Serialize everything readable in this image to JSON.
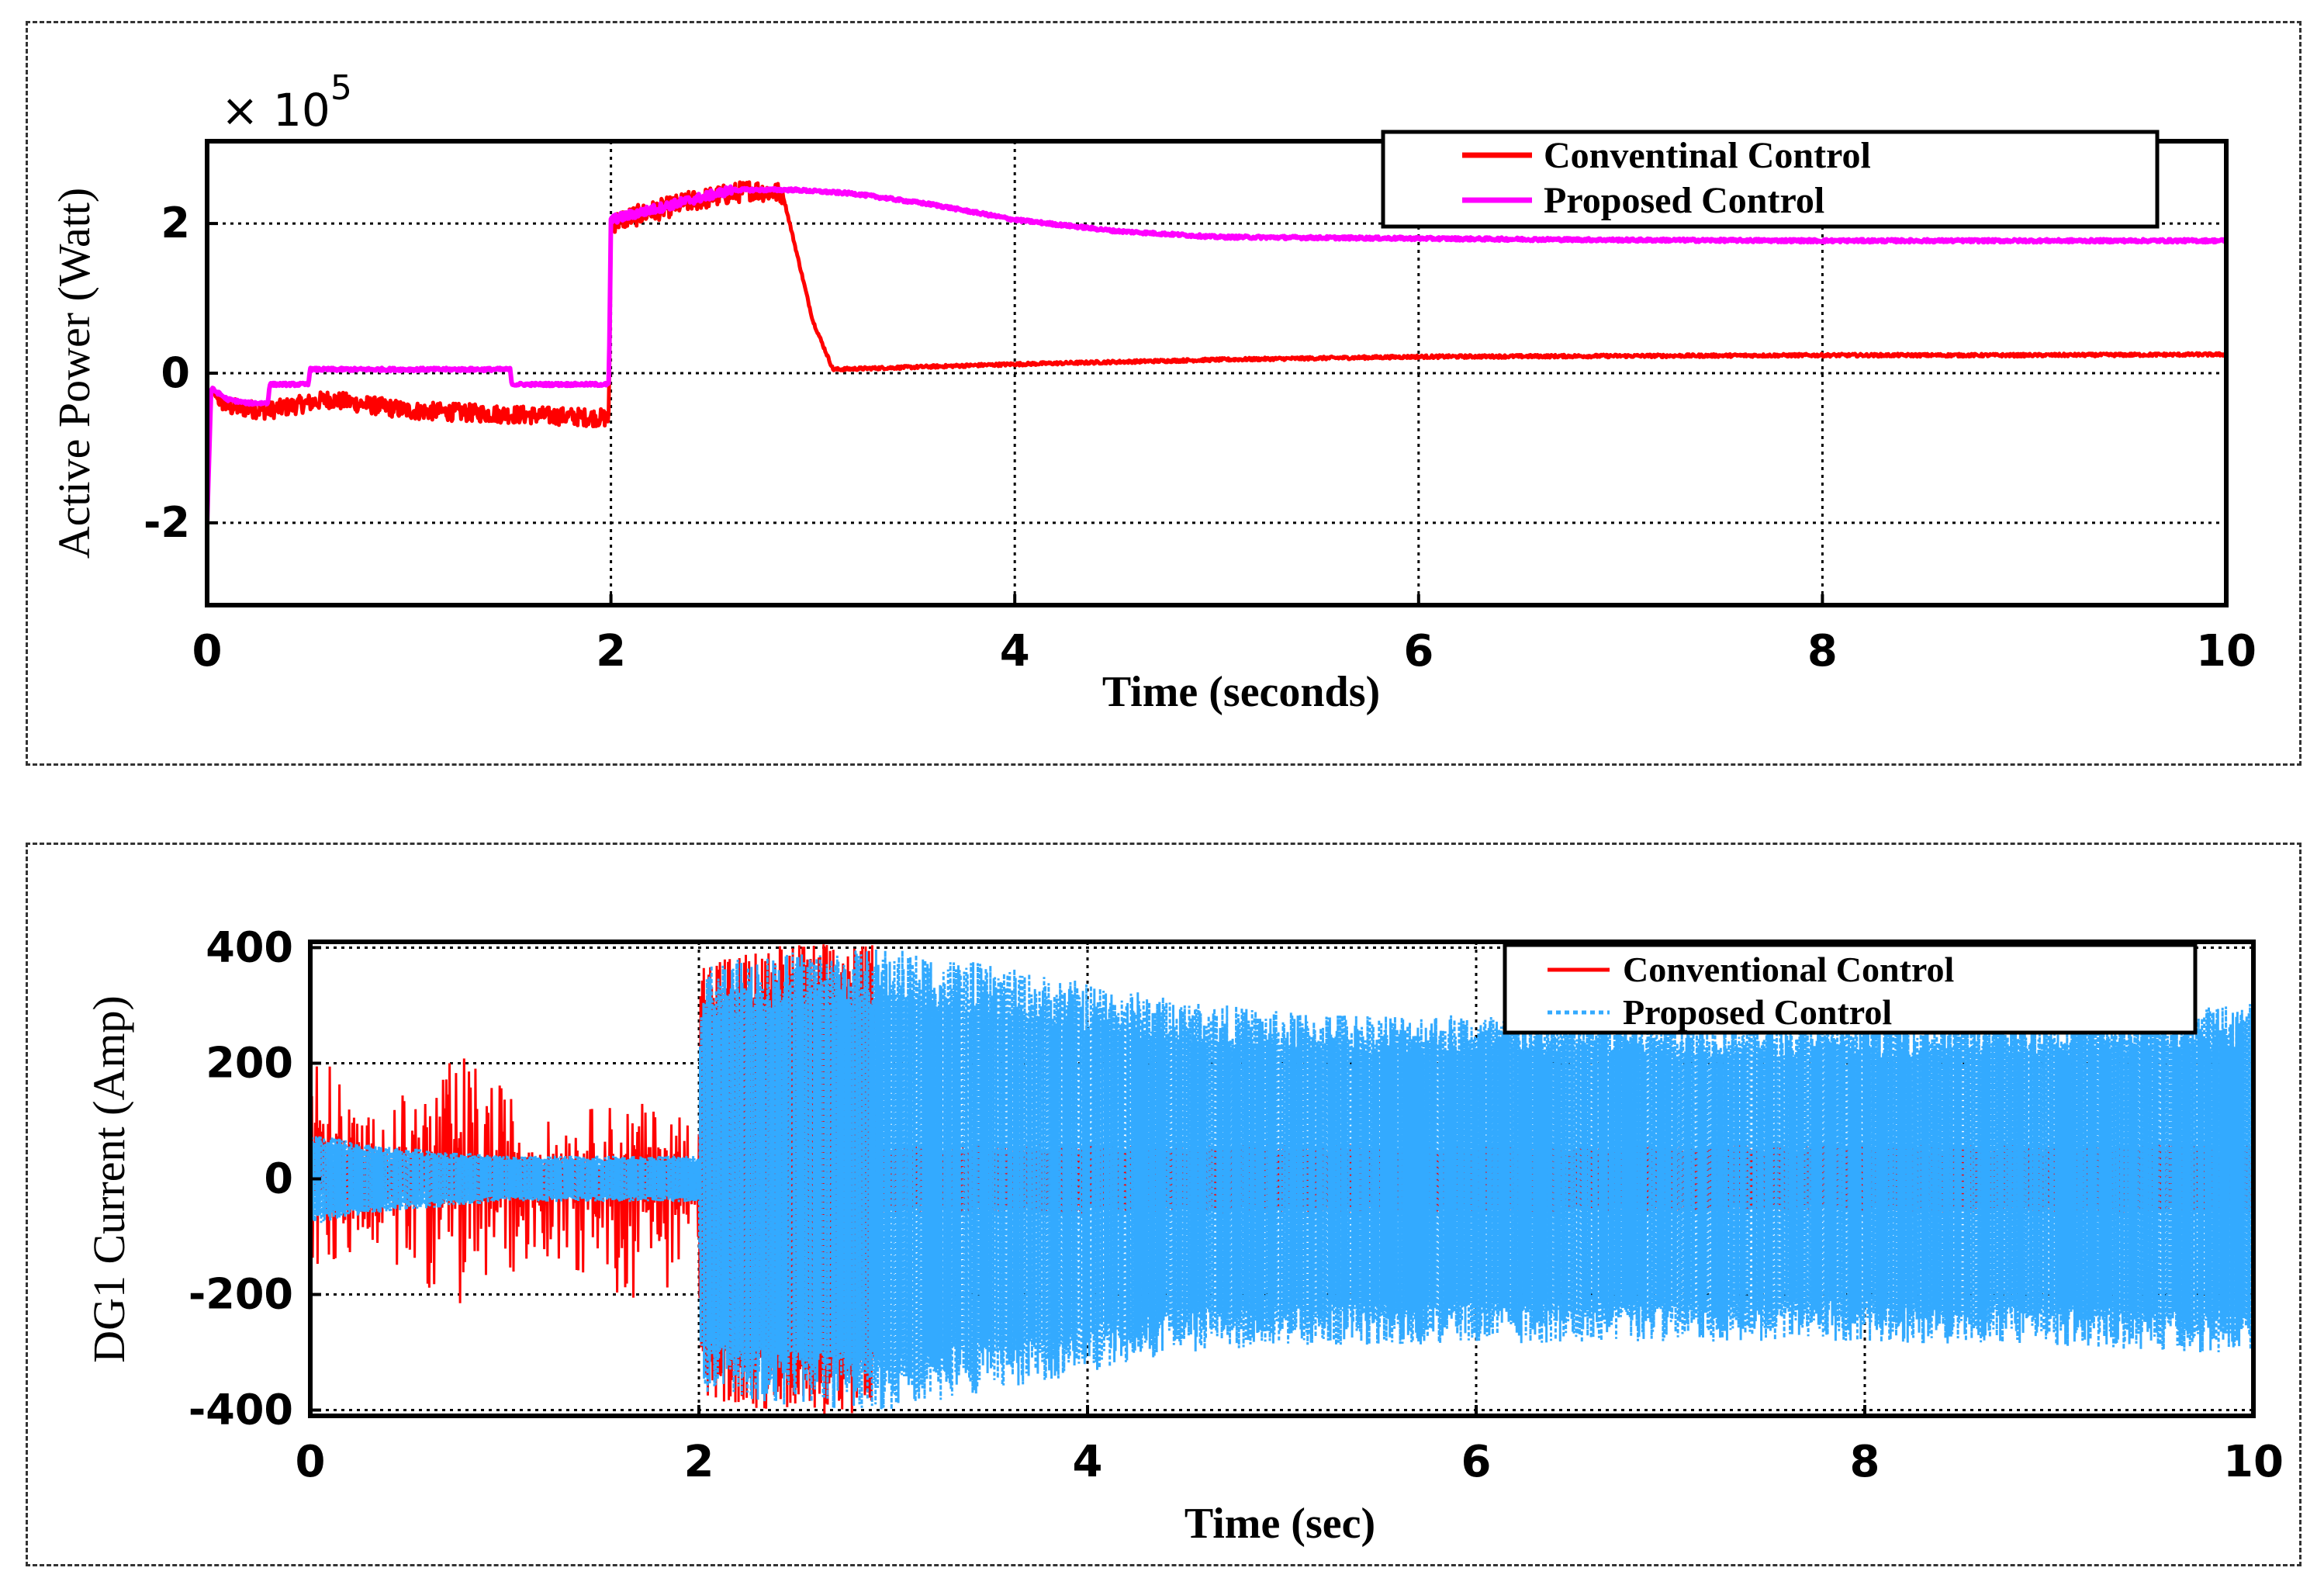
{
  "chart_data": [
    {
      "type": "line",
      "title": "",
      "xlabel": "Time (seconds)",
      "ylabel": "Active Power (Watt)",
      "y_multiplier": "× 10",
      "y_multiplier_exp": "5",
      "xlim": [
        0,
        10
      ],
      "ylim": [
        -3.1,
        3.1
      ],
      "xticks": [
        0,
        2,
        4,
        6,
        8,
        10
      ],
      "yticks": [
        -2,
        0,
        2
      ],
      "xtick_labels": [
        "0",
        "2",
        "4",
        "6",
        "8",
        "10"
      ],
      "ytick_labels": [
        "-2",
        "0",
        "2"
      ],
      "grid": true,
      "legend_position": "top-right",
      "series": [
        {
          "name": "Conventinal Control",
          "color": "#ff0000",
          "style": "solid",
          "x": [
            0,
            0.02,
            0.1,
            0.3,
            0.6,
            1.0,
            1.5,
            1.99,
            2.0,
            2.05,
            2.4,
            2.7,
            2.85,
            3.0,
            3.1,
            4,
            5,
            6,
            7,
            8,
            9,
            10
          ],
          "values": [
            -2.0,
            -0.25,
            -0.45,
            -0.5,
            -0.35,
            -0.5,
            -0.55,
            -0.6,
            2.0,
            2.05,
            2.3,
            2.45,
            2.4,
            0.7,
            0.05,
            0.12,
            0.18,
            0.22,
            0.23,
            0.24,
            0.24,
            0.25
          ]
        },
        {
          "name": "Proposed Control",
          "color": "#ff00ff",
          "style": "solid",
          "x": [
            0,
            0.02,
            0.1,
            0.2,
            0.3,
            0.31,
            0.5,
            0.51,
            1.5,
            1.51,
            1.99,
            2.0,
            2.3,
            2.6,
            2.9,
            3.2,
            3.6,
            4,
            4.5,
            5,
            6,
            7,
            8,
            9,
            10
          ],
          "values": [
            -2.0,
            -0.2,
            -0.35,
            -0.4,
            -0.4,
            -0.15,
            -0.15,
            0.05,
            0.05,
            -0.15,
            -0.15,
            2.05,
            2.25,
            2.45,
            2.45,
            2.4,
            2.25,
            2.05,
            1.9,
            1.82,
            1.8,
            1.78,
            1.77,
            1.77,
            1.77
          ]
        }
      ]
    },
    {
      "type": "line",
      "title": "",
      "xlabel": "Time (sec)",
      "ylabel": "DG1 Current (Amp)",
      "xlim": [
        0,
        10
      ],
      "ylim": [
        -410,
        410
      ],
      "xticks": [
        0,
        2,
        4,
        6,
        8,
        10
      ],
      "yticks": [
        -400,
        -200,
        0,
        200,
        400
      ],
      "xtick_labels": [
        "0",
        "2",
        "4",
        "6",
        "8",
        "10"
      ],
      "ytick_labels": [
        "-400",
        "-200",
        "0",
        "200",
        "400"
      ],
      "grid": true,
      "legend_position": "top-right",
      "series": [
        {
          "name": "Conventional Control",
          "color": "#ff0000",
          "style": "solid",
          "envelope_x": [
            0,
            0.3,
            0.8,
            1.2,
            1.6,
            2.0,
            2.01,
            2.5,
            2.9,
            2.91,
            4,
            6,
            8,
            10
          ],
          "envelope_upper": [
            240,
            90,
            200,
            80,
            120,
            90,
            380,
            410,
            405,
            60,
            60,
            60,
            60,
            60
          ],
          "envelope_lower": [
            -170,
            -100,
            -210,
            -110,
            -200,
            -150,
            -380,
            -410,
            -405,
            -60,
            -60,
            -60,
            -60,
            -60
          ]
        },
        {
          "name": "Proposed Control",
          "color": "#33aaff",
          "style": "dotted",
          "envelope_x": [
            0,
            0.3,
            1.0,
            2.0,
            2.01,
            2.5,
            3.0,
            3.5,
            4.0,
            4.5,
            5.0,
            6.0,
            7.0,
            8.0,
            9.0,
            10.0
          ],
          "envelope_upper": [
            80,
            60,
            40,
            40,
            370,
            395,
            400,
            370,
            340,
            310,
            290,
            285,
            280,
            280,
            285,
            305
          ],
          "envelope_lower": [
            -80,
            -60,
            -40,
            -40,
            -370,
            -395,
            -400,
            -370,
            -335,
            -300,
            -290,
            -285,
            -282,
            -282,
            -290,
            -305
          ]
        }
      ]
    }
  ]
}
